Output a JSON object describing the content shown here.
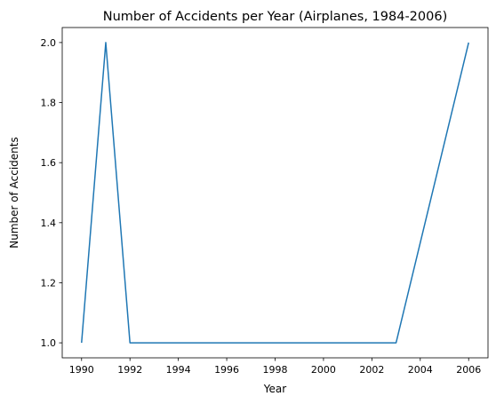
{
  "chart_data": {
    "type": "line",
    "title": "Number of Accidents per Year (Airplanes, 1984-2006)",
    "xlabel": "Year",
    "ylabel": "Number of Accidents",
    "xlim": [
      1989.2,
      2006.8
    ],
    "ylim": [
      0.95,
      2.05
    ],
    "xticks": [
      1990,
      1992,
      1994,
      1996,
      1998,
      2000,
      2002,
      2004,
      2006
    ],
    "yticks": [
      1.0,
      1.2,
      1.4,
      1.6,
      1.8,
      2.0
    ],
    "ytick_labels": [
      "1.0",
      "1.2",
      "1.4",
      "1.6",
      "1.8",
      "2.0"
    ],
    "grid": false,
    "series": [
      {
        "color": "#1f77b4",
        "x": [
          1990,
          1991,
          1992,
          1993,
          1994,
          1995,
          1996,
          1997,
          1998,
          1999,
          2000,
          2001,
          2002,
          2003,
          2006
        ],
        "y": [
          1,
          2,
          1,
          1,
          1,
          1,
          1,
          1,
          1,
          1,
          1,
          1,
          1,
          1,
          2
        ]
      }
    ]
  }
}
